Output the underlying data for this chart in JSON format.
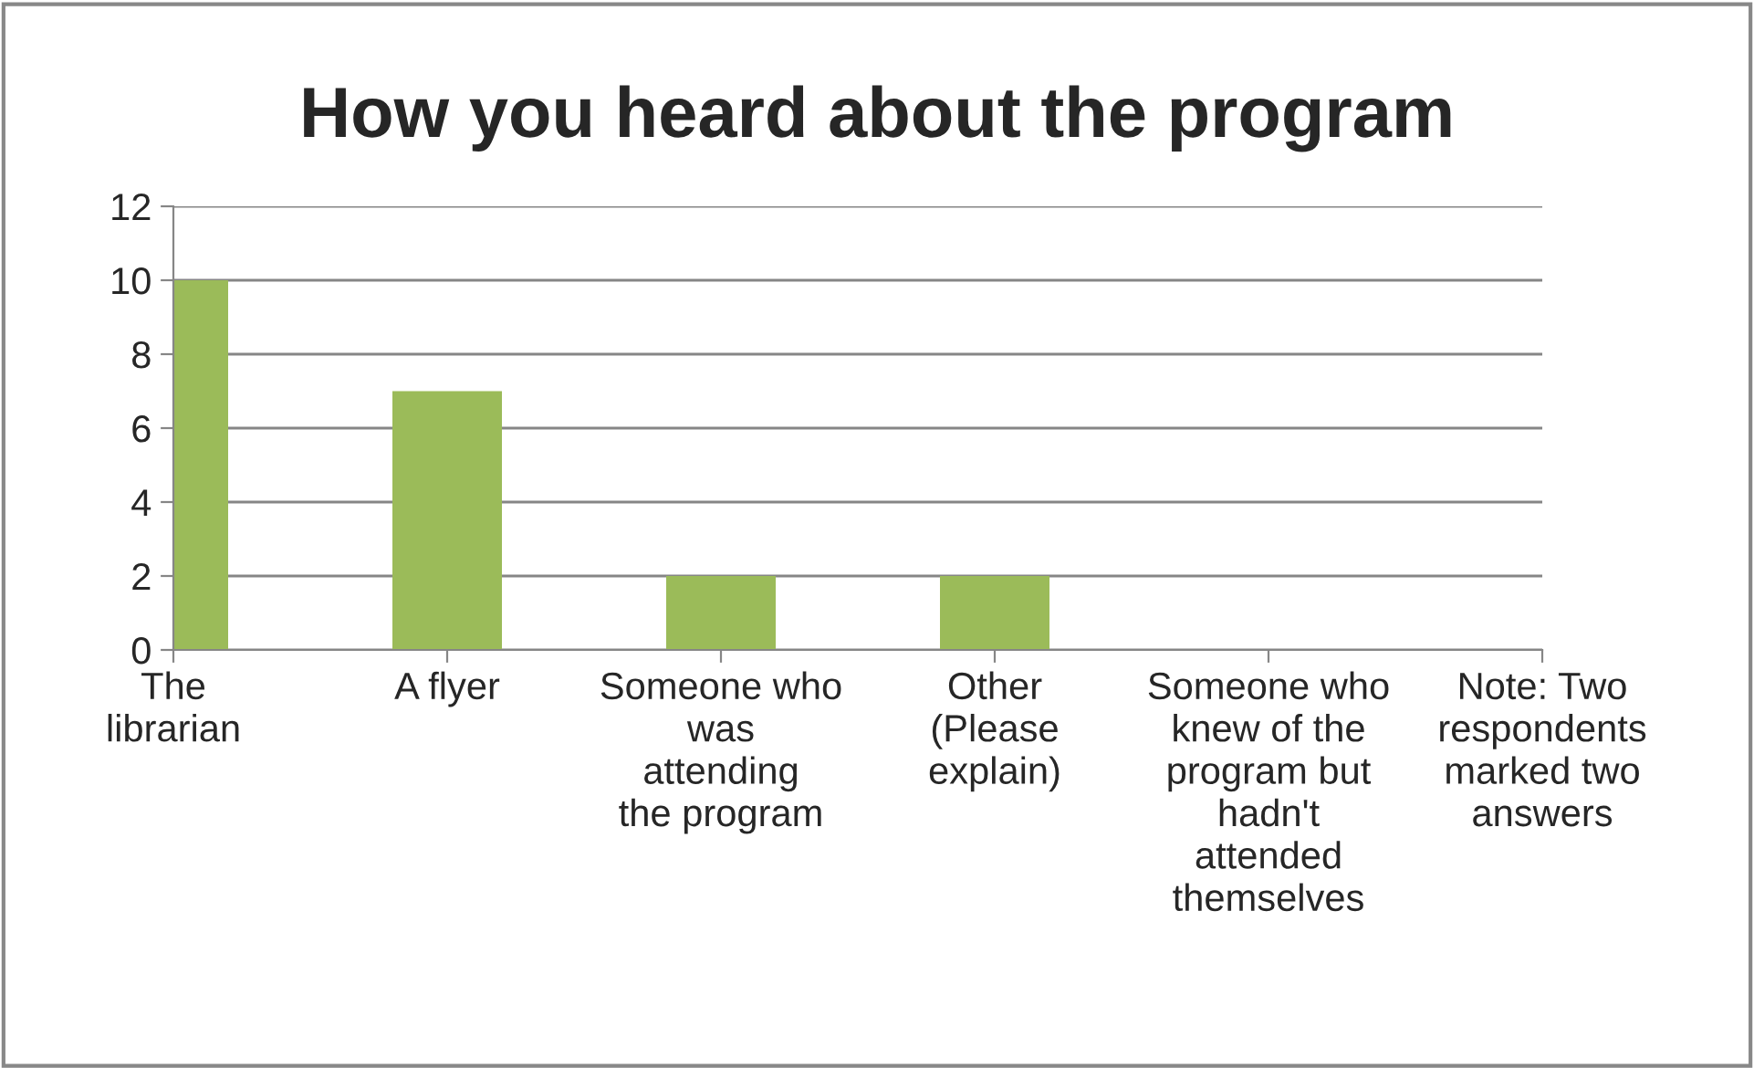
{
  "chart_data": {
    "type": "bar",
    "title": "How you heard about the program",
    "categories": [
      "The librarian",
      "A flyer",
      "Someone who was attending the program",
      "Other (Please explain)",
      "Someone who knew of the program but hadn't attended themselves",
      "Note: Two respondents marked two answers"
    ],
    "values": [
      10,
      7,
      2,
      2,
      0,
      0
    ],
    "color": "#9bbb59",
    "ylim": [
      0,
      12
    ],
    "yticks": [
      0,
      2,
      4,
      6,
      8,
      10,
      12
    ],
    "grid": "y",
    "legend": false
  }
}
